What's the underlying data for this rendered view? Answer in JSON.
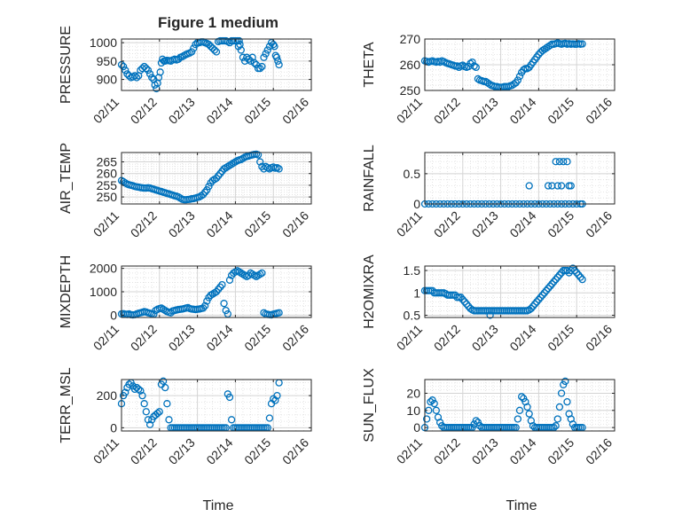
{
  "figure": {
    "title": "Figure 1 medium",
    "series_color": "#0072BD",
    "grid": true,
    "x_axis": {
      "label": "Time",
      "ticks": [
        "02/11",
        "02/12",
        "02/13",
        "02/14",
        "02/15",
        "02/16"
      ],
      "range": [
        "02/11",
        "02/16"
      ]
    }
  },
  "chart_data": [
    {
      "type": "scatter",
      "ylabel": "PRESSURE",
      "ylim": [
        870,
        1010
      ],
      "yticks": [
        900,
        950,
        1000
      ],
      "x": [
        0.0,
        0.05,
        0.1,
        0.15,
        0.2,
        0.25,
        0.3,
        0.35,
        0.4,
        0.45,
        0.5,
        0.55,
        0.6,
        0.65,
        0.7,
        0.75,
        0.8,
        0.85,
        0.88,
        0.92,
        0.95,
        0.98,
        1.02,
        1.05,
        1.08,
        1.12,
        1.15,
        1.2,
        1.25,
        1.3,
        1.35,
        1.4,
        1.45,
        1.5,
        1.55,
        1.6,
        1.65,
        1.7,
        1.75,
        1.8,
        1.85,
        1.9,
        1.95,
        2.0,
        2.05,
        2.1,
        2.15,
        2.2,
        2.25,
        2.3,
        2.35,
        2.4,
        2.45,
        2.5,
        2.55,
        2.6,
        2.65,
        2.7,
        2.75,
        2.8,
        2.85,
        2.9,
        2.95,
        3.0,
        3.05,
        3.08,
        3.1,
        3.12,
        3.15,
        3.2,
        3.25,
        3.3,
        3.35,
        3.4,
        3.45,
        3.5,
        3.55,
        3.6,
        3.65,
        3.7,
        3.75,
        3.8,
        3.85,
        3.9,
        3.95,
        4.0,
        4.03,
        4.06,
        4.09,
        4.12,
        4.15
      ],
      "values": [
        940,
        935,
        925,
        915,
        910,
        905,
        907,
        910,
        905,
        910,
        925,
        930,
        935,
        930,
        925,
        915,
        905,
        900,
        885,
        875,
        890,
        905,
        920,
        945,
        955,
        950,
        950,
        952,
        951,
        950,
        953,
        955,
        953,
        955,
        960,
        962,
        965,
        968,
        970,
        972,
        975,
        985,
        995,
        1000,
        1000,
        1002,
        1002,
        1000,
        998,
        995,
        990,
        985,
        980,
        975,
        1003,
        1005,
        1005,
        1005,
        1005,
        1003,
        1000,
        1005,
        1005,
        1005,
        1005,
        990,
        1005,
        995,
        980,
        960,
        950,
        960,
        955,
        950,
        960,
        945,
        940,
        930,
        930,
        935,
        960,
        970,
        980,
        990,
        1000,
        995,
        990,
        965,
        960,
        950,
        940
      ]
    },
    {
      "type": "scatter",
      "ylabel": "THETA",
      "ylim": [
        250,
        270
      ],
      "yticks": [
        250,
        260,
        270
      ],
      "x": [
        0.0,
        0.05,
        0.1,
        0.15,
        0.2,
        0.25,
        0.3,
        0.35,
        0.4,
        0.45,
        0.5,
        0.55,
        0.6,
        0.65,
        0.7,
        0.75,
        0.8,
        0.85,
        0.9,
        0.95,
        1.0,
        1.05,
        1.1,
        1.15,
        1.2,
        1.25,
        1.3,
        1.35,
        1.4,
        1.45,
        1.5,
        1.55,
        1.6,
        1.65,
        1.7,
        1.75,
        1.8,
        1.85,
        1.9,
        1.95,
        2.0,
        2.05,
        2.1,
        2.15,
        2.2,
        2.25,
        2.3,
        2.35,
        2.4,
        2.45,
        2.5,
        2.55,
        2.6,
        2.65,
        2.7,
        2.75,
        2.8,
        2.85,
        2.9,
        2.95,
        3.0,
        3.05,
        3.1,
        3.15,
        3.2,
        3.25,
        3.3,
        3.35,
        3.4,
        3.45,
        3.5,
        3.55,
        3.6,
        3.65,
        3.7,
        3.75,
        3.8,
        3.85,
        3.9,
        3.95,
        4.0,
        4.05,
        4.1,
        4.15
      ],
      "values": [
        261.5,
        261.3,
        261.0,
        261.3,
        261.5,
        261.2,
        261.0,
        261.3,
        261.0,
        261.5,
        261.2,
        260.8,
        260.5,
        260.3,
        260.0,
        259.8,
        259.5,
        259.5,
        259.0,
        259.5,
        259.8,
        259.3,
        259.0,
        259.3,
        260.5,
        261.0,
        259.5,
        259.0,
        254.5,
        254.0,
        253.8,
        253.5,
        253.5,
        253.0,
        252.5,
        252.0,
        251.8,
        251.5,
        251.5,
        251.3,
        251.2,
        251.3,
        251.5,
        251.5,
        251.5,
        251.8,
        252.0,
        252.5,
        253.0,
        254.0,
        255.5,
        257.0,
        258.0,
        258.5,
        258.5,
        259.0,
        260.0,
        261.0,
        262.0,
        263.0,
        264.0,
        264.8,
        265.5,
        266.0,
        266.5,
        267.0,
        267.5,
        268.0,
        268.0,
        268.2,
        268.5,
        268.2,
        268.0,
        268.2,
        268.3,
        268.0,
        268.2,
        268.0,
        268.1,
        268.0,
        268.0,
        268.2,
        268.0,
        268.1
      ]
    },
    {
      "type": "scatter",
      "ylabel": "AIR_TEMP",
      "ylim": [
        247,
        269
      ],
      "yticks": [
        250,
        255,
        260,
        265
      ],
      "x": [
        0.0,
        0.05,
        0.1,
        0.15,
        0.2,
        0.25,
        0.3,
        0.35,
        0.4,
        0.45,
        0.5,
        0.55,
        0.6,
        0.65,
        0.7,
        0.75,
        0.8,
        0.85,
        0.9,
        0.95,
        1.0,
        1.05,
        1.1,
        1.15,
        1.2,
        1.25,
        1.3,
        1.35,
        1.4,
        1.45,
        1.5,
        1.55,
        1.6,
        1.65,
        1.7,
        1.75,
        1.8,
        1.85,
        1.9,
        1.95,
        2.0,
        2.05,
        2.1,
        2.15,
        2.2,
        2.25,
        2.3,
        2.35,
        2.4,
        2.45,
        2.5,
        2.55,
        2.6,
        2.65,
        2.7,
        2.75,
        2.8,
        2.85,
        2.9,
        2.95,
        3.0,
        3.05,
        3.1,
        3.15,
        3.2,
        3.25,
        3.3,
        3.35,
        3.4,
        3.45,
        3.5,
        3.55,
        3.6,
        3.65,
        3.7,
        3.75,
        3.8,
        3.85,
        3.9,
        3.95,
        4.0,
        4.05,
        4.1,
        4.15
      ],
      "values": [
        257.0,
        256.5,
        256.0,
        255.5,
        255.2,
        255.0,
        254.8,
        254.5,
        254.3,
        254.2,
        254.0,
        253.9,
        253.8,
        253.8,
        253.9,
        253.8,
        253.5,
        253.3,
        253.0,
        252.8,
        252.5,
        252.3,
        252.0,
        251.8,
        251.5,
        251.3,
        251.0,
        250.8,
        250.5,
        250.3,
        250.0,
        249.5,
        249.0,
        248.8,
        248.8,
        248.9,
        249.0,
        249.2,
        249.3,
        249.5,
        249.8,
        250.0,
        250.5,
        251.0,
        252.0,
        253.0,
        254.5,
        256.0,
        257.0,
        257.5,
        258.0,
        259.0,
        260.0,
        261.0,
        262.0,
        262.5,
        263.0,
        263.5,
        264.0,
        264.5,
        265.0,
        265.5,
        265.8,
        266.0,
        266.5,
        267.0,
        267.3,
        267.5,
        267.8,
        268.0,
        268.2,
        268.3,
        268.0,
        265.0,
        263.0,
        262.0,
        263.0,
        262.5,
        262.0,
        262.5,
        262.8,
        262.3,
        262.5,
        262.0
      ]
    },
    {
      "type": "scatter",
      "ylabel": "RAINFALL",
      "ylim": [
        0,
        0.85
      ],
      "yticks": [
        0,
        0.5
      ],
      "x": [
        0.0,
        0.1,
        0.2,
        0.3,
        0.4,
        0.5,
        0.6,
        0.7,
        0.8,
        0.9,
        1.0,
        1.1,
        1.2,
        1.3,
        1.4,
        1.5,
        1.6,
        1.7,
        1.8,
        1.9,
        2.0,
        2.1,
        2.2,
        2.3,
        2.4,
        2.5,
        2.6,
        2.7,
        2.8,
        2.9,
        3.0,
        3.1,
        3.2,
        3.3,
        3.4,
        3.5,
        3.6,
        3.7,
        3.8,
        3.9,
        4.0,
        4.1,
        4.15,
        2.75,
        3.25,
        3.35,
        3.45,
        3.5,
        3.55,
        3.6,
        3.65,
        3.75,
        3.8,
        3.85
      ],
      "values": [
        0,
        0,
        0,
        0,
        0,
        0,
        0,
        0,
        0,
        0,
        0,
        0,
        0,
        0,
        0,
        0,
        0,
        0,
        0,
        0,
        0,
        0,
        0,
        0,
        0,
        0,
        0,
        0,
        0,
        0,
        0,
        0,
        0,
        0,
        0,
        0,
        0,
        0,
        0,
        0,
        0,
        0,
        0,
        0.3,
        0.3,
        0.3,
        0.7,
        0.3,
        0.7,
        0.3,
        0.7,
        0.7,
        0.3,
        0.3
      ]
    },
    {
      "type": "scatter",
      "ylabel": "MIXDEPTH",
      "ylim": [
        -100,
        2100
      ],
      "yticks": [
        0,
        1000,
        2000
      ],
      "x": [
        0.0,
        0.05,
        0.1,
        0.15,
        0.2,
        0.25,
        0.3,
        0.35,
        0.4,
        0.45,
        0.5,
        0.55,
        0.6,
        0.65,
        0.7,
        0.75,
        0.8,
        0.85,
        0.9,
        0.95,
        1.0,
        1.05,
        1.1,
        1.15,
        1.2,
        1.25,
        1.3,
        1.35,
        1.4,
        1.45,
        1.5,
        1.55,
        1.6,
        1.65,
        1.7,
        1.75,
        1.8,
        1.85,
        1.9,
        1.95,
        2.0,
        2.05,
        2.1,
        2.15,
        2.2,
        2.25,
        2.3,
        2.35,
        2.4,
        2.45,
        2.5,
        2.55,
        2.6,
        2.65,
        2.7,
        2.75,
        2.8,
        2.85,
        2.9,
        2.95,
        3.0,
        3.05,
        3.1,
        3.15,
        3.2,
        3.25,
        3.3,
        3.35,
        3.4,
        3.45,
        3.5,
        3.55,
        3.6,
        3.65,
        3.7,
        3.75,
        3.8,
        3.85,
        3.9,
        3.95,
        4.0,
        4.05,
        4.1,
        4.15
      ],
      "values": [
        50,
        60,
        40,
        30,
        50,
        20,
        10,
        20,
        50,
        80,
        100,
        120,
        150,
        130,
        100,
        80,
        60,
        40,
        200,
        250,
        280,
        300,
        250,
        200,
        150,
        120,
        100,
        180,
        200,
        220,
        240,
        250,
        260,
        280,
        300,
        320,
        280,
        260,
        250,
        240,
        250,
        260,
        280,
        300,
        400,
        600,
        750,
        850,
        900,
        950,
        1000,
        1100,
        1200,
        1300,
        500,
        200,
        50,
        1500,
        1700,
        1800,
        1850,
        1900,
        1850,
        1800,
        1750,
        1700,
        1650,
        1700,
        1800,
        1750,
        1700,
        1650,
        1700,
        1750,
        1800,
        100,
        50,
        30,
        20,
        10,
        40,
        60,
        80,
        100
      ]
    },
    {
      "type": "scatter",
      "ylabel": "H2OMIXRA",
      "ylim": [
        0.45,
        1.6
      ],
      "yticks": [
        0.5,
        1,
        1.5
      ],
      "x": [
        0.0,
        0.05,
        0.1,
        0.15,
        0.2,
        0.25,
        0.3,
        0.35,
        0.4,
        0.45,
        0.5,
        0.55,
        0.6,
        0.65,
        0.7,
        0.75,
        0.8,
        0.85,
        0.9,
        0.95,
        1.0,
        1.05,
        1.1,
        1.15,
        1.2,
        1.25,
        1.3,
        1.35,
        1.4,
        1.45,
        1.5,
        1.55,
        1.6,
        1.65,
        1.7,
        1.75,
        1.8,
        1.85,
        1.9,
        1.95,
        2.0,
        2.05,
        2.1,
        2.15,
        2.2,
        2.25,
        2.3,
        2.35,
        2.4,
        2.45,
        2.5,
        2.55,
        2.6,
        2.65,
        2.7,
        2.75,
        2.8,
        2.85,
        2.9,
        2.95,
        3.0,
        3.05,
        3.1,
        3.15,
        3.2,
        3.25,
        3.3,
        3.35,
        3.4,
        3.45,
        3.5,
        3.55,
        3.6,
        3.65,
        3.7,
        3.75,
        3.8,
        3.85,
        3.9,
        3.95,
        4.0,
        4.05,
        4.1,
        4.15,
        1.72
      ],
      "values": [
        1.05,
        1.05,
        1.05,
        1.05,
        1.05,
        1.0,
        1.0,
        1.0,
        1.0,
        1.0,
        1.0,
        0.98,
        0.95,
        0.95,
        0.95,
        0.95,
        0.95,
        0.9,
        0.9,
        0.9,
        0.85,
        0.8,
        0.75,
        0.7,
        0.65,
        0.62,
        0.6,
        0.6,
        0.6,
        0.6,
        0.6,
        0.6,
        0.6,
        0.6,
        0.6,
        0.6,
        0.6,
        0.6,
        0.6,
        0.6,
        0.6,
        0.6,
        0.6,
        0.6,
        0.6,
        0.6,
        0.6,
        0.6,
        0.6,
        0.6,
        0.6,
        0.6,
        0.6,
        0.6,
        0.6,
        0.62,
        0.65,
        0.7,
        0.75,
        0.8,
        0.85,
        0.9,
        0.95,
        1.0,
        1.05,
        1.1,
        1.15,
        1.2,
        1.25,
        1.3,
        1.35,
        1.4,
        1.45,
        1.5,
        1.5,
        1.5,
        1.45,
        1.5,
        1.55,
        1.5,
        1.45,
        1.4,
        1.35,
        1.3,
        0.5
      ]
    },
    {
      "type": "scatter",
      "ylabel": "TERR_MSL",
      "ylim": [
        -20,
        300
      ],
      "yticks": [
        0,
        200
      ],
      "x": [
        0.0,
        0.05,
        0.1,
        0.15,
        0.2,
        0.25,
        0.3,
        0.35,
        0.4,
        0.45,
        0.5,
        0.55,
        0.6,
        0.65,
        0.7,
        0.75,
        0.8,
        0.85,
        0.9,
        0.95,
        1.0,
        1.05,
        1.1,
        1.15,
        1.2,
        1.25,
        1.3,
        1.35,
        1.4,
        1.45,
        1.5,
        1.55,
        1.6,
        1.65,
        1.7,
        1.75,
        1.8,
        1.85,
        1.9,
        1.95,
        2.0,
        2.05,
        2.1,
        2.15,
        2.2,
        2.25,
        2.3,
        2.35,
        2.4,
        2.45,
        2.5,
        2.55,
        2.6,
        2.65,
        2.7,
        2.75,
        2.8,
        2.85,
        2.9,
        2.95,
        3.0,
        3.05,
        3.1,
        3.15,
        3.2,
        3.25,
        3.3,
        3.35,
        3.4,
        3.45,
        3.5,
        3.55,
        3.6,
        3.65,
        3.7,
        3.75,
        3.8,
        3.85,
        3.9,
        3.95,
        4.0,
        4.05,
        4.1,
        4.15
      ],
      "values": [
        150,
        200,
        220,
        250,
        270,
        280,
        260,
        240,
        250,
        240,
        230,
        200,
        150,
        100,
        50,
        20,
        50,
        70,
        80,
        90,
        100,
        270,
        290,
        250,
        150,
        50,
        0,
        0,
        0,
        0,
        0,
        0,
        0,
        0,
        0,
        0,
        0,
        0,
        0,
        0,
        0,
        0,
        0,
        0,
        0,
        0,
        0,
        0,
        0,
        0,
        0,
        0,
        0,
        0,
        0,
        0,
        210,
        190,
        50,
        0,
        0,
        0,
        0,
        0,
        0,
        0,
        0,
        0,
        0,
        0,
        0,
        0,
        0,
        0,
        0,
        0,
        0,
        0,
        60,
        150,
        180,
        170,
        200,
        280
      ]
    },
    {
      "type": "scatter",
      "ylabel": "SUN_FLUX",
      "ylim": [
        -2,
        28
      ],
      "yticks": [
        0,
        10,
        20
      ],
      "x": [
        0.0,
        0.05,
        0.1,
        0.15,
        0.2,
        0.25,
        0.3,
        0.35,
        0.4,
        0.45,
        0.5,
        0.55,
        0.6,
        0.65,
        0.7,
        0.75,
        0.8,
        0.85,
        0.9,
        0.95,
        1.0,
        1.05,
        1.1,
        1.15,
        1.2,
        1.25,
        1.3,
        1.35,
        1.4,
        1.45,
        1.5,
        1.55,
        1.6,
        1.65,
        1.7,
        1.75,
        1.8,
        1.85,
        1.9,
        1.95,
        2.0,
        2.05,
        2.1,
        2.15,
        2.2,
        2.25,
        2.3,
        2.35,
        2.4,
        2.45,
        2.5,
        2.55,
        2.6,
        2.65,
        2.7,
        2.75,
        2.8,
        2.85,
        2.9,
        2.95,
        3.0,
        3.05,
        3.1,
        3.15,
        3.2,
        3.25,
        3.3,
        3.35,
        3.4,
        3.45,
        3.5,
        3.55,
        3.6,
        3.65,
        3.7,
        3.75,
        3.8,
        3.85,
        3.9,
        3.95,
        4.0,
        4.05,
        4.1,
        4.15
      ],
      "values": [
        0,
        5,
        10,
        15,
        16,
        14,
        10,
        6,
        3,
        1,
        0,
        0,
        0,
        0,
        0,
        0,
        0,
        0,
        0,
        0,
        0,
        0,
        0,
        0,
        0,
        0,
        2,
        4,
        3,
        1,
        0,
        0,
        0,
        0,
        0,
        0,
        0,
        0,
        0,
        0,
        0,
        0,
        0,
        0,
        0,
        0,
        0,
        0,
        0,
        5,
        10,
        18,
        17,
        15,
        12,
        8,
        4,
        1,
        0,
        0,
        0,
        0,
        0,
        0,
        0,
        0,
        0,
        0,
        0,
        1,
        5,
        12,
        20,
        25,
        27,
        15,
        8,
        5,
        2,
        0,
        0,
        0,
        0,
        0
      ]
    }
  ]
}
